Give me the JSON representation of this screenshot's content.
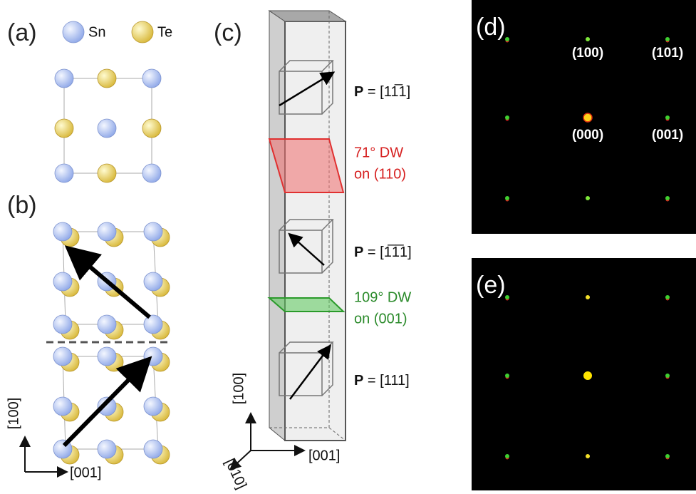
{
  "panel_a": {
    "label": "(a)",
    "legend": [
      "Sn",
      "Te"
    ]
  },
  "panel_b": {
    "label": "(b)",
    "axes": [
      "[100]",
      "[001]"
    ]
  },
  "panel_c": {
    "label": "(c)",
    "polarizations": [
      {
        "symbol": "P",
        "text": "= [11̅1]"
      },
      {
        "symbol": "P",
        "text": "= [1̅1̅1]"
      },
      {
        "symbol": "P",
        "text": "= [111]"
      }
    ],
    "walls": [
      {
        "name": "71° DW",
        "plane": "on (110)"
      },
      {
        "name": "109° DW",
        "plane": "on (001)"
      }
    ],
    "axes": [
      "[100]",
      "[010]",
      "[001]"
    ]
  },
  "panel_d": {
    "label": "(d)",
    "spots": [
      "(100)",
      "(101)",
      "(000)",
      "(001)"
    ]
  },
  "panel_e": {
    "label": "(e)"
  }
}
